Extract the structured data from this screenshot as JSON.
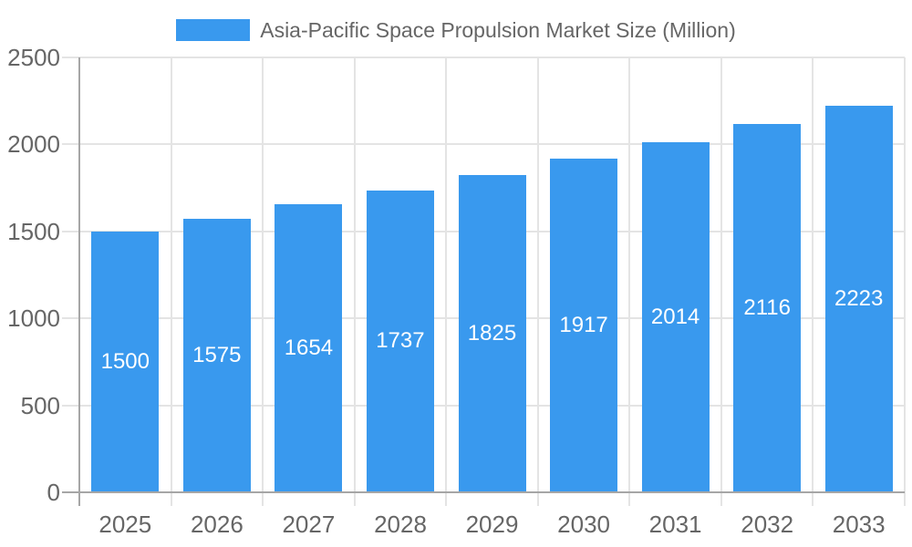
{
  "legend": {
    "label": "Asia-Pacific Space Propulsion Market Size (Million)",
    "swatch_color": "#3999EE"
  },
  "chart_data": {
    "type": "bar",
    "title": "Asia-Pacific Space Propulsion Market Size (Million)",
    "categories": [
      "2025",
      "2026",
      "2027",
      "2028",
      "2029",
      "2030",
      "2031",
      "2032",
      "2033"
    ],
    "values": [
      1500,
      1575,
      1654,
      1737,
      1825,
      1917,
      2014,
      2116,
      2223
    ],
    "xlabel": "",
    "ylabel": "",
    "ylim": [
      0,
      2500
    ],
    "ytick_interval": 500,
    "yticks": [
      "0",
      "500",
      "1000",
      "1500",
      "2000",
      "2500"
    ],
    "grid": true,
    "legend_position": "top",
    "value_label_position": "inside-center"
  },
  "colors": {
    "background": "#FFFFFF",
    "bar": "#3999EE",
    "axis_text": "#666666",
    "gridline": "#E4E4E4",
    "axis_line": "#A6A6A6",
    "value_label": "#FFFFFF"
  }
}
